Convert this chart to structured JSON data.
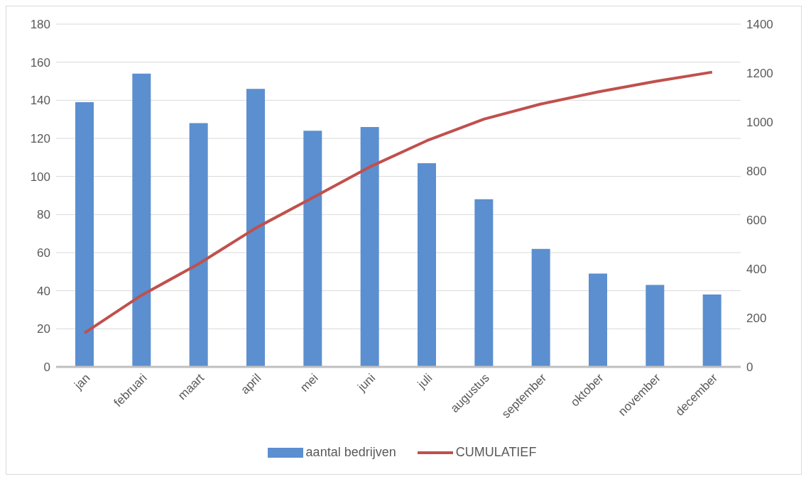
{
  "chart_data": {
    "type": "bar",
    "categories": [
      "jan",
      "februari",
      "maart",
      "april",
      "mei",
      "juni",
      "juli",
      "augustus",
      "september",
      "oktober",
      "november",
      "december"
    ],
    "series": [
      {
        "name": "aantal bedrijven",
        "color": "#5b8fd0",
        "values": [
          139,
          154,
          128,
          146,
          124,
          126,
          107,
          88,
          62,
          49,
          43,
          38
        ]
      },
      {
        "name": "CUMULATIEF",
        "type": "line",
        "axis": "y2",
        "color": "#c0504d",
        "values": [
          139,
          293,
          421,
          567,
          691,
          817,
          924,
          1012,
          1074,
          1123,
          1166,
          1204
        ]
      }
    ],
    "ylim": [
      0,
      180
    ],
    "yticks": [
      0,
      20,
      40,
      60,
      80,
      100,
      120,
      140,
      160,
      180
    ],
    "y2lim": [
      0,
      1400
    ],
    "y2ticks": [
      0,
      200,
      400,
      600,
      800,
      1000,
      1200,
      1400
    ],
    "grid": "y",
    "legend": "bottom",
    "marker": "none",
    "line_style": "solid"
  }
}
